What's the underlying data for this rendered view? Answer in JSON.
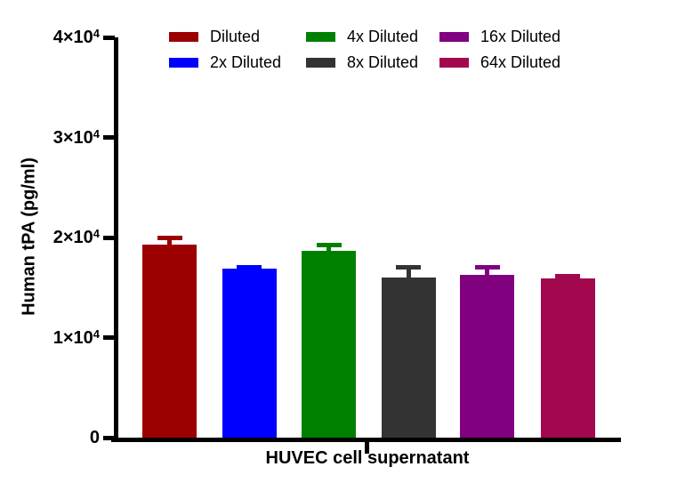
{
  "chart_data": {
    "type": "bar",
    "title": "",
    "xlabel": "HUVEC cell supernatant",
    "ylabel": "Human tPA (pg/ml)",
    "ylim": [
      0,
      40000
    ],
    "grid": false,
    "legend_position": "top-center",
    "background": "#FFFFFF",
    "axis_color": "#000000",
    "categories": [
      "HUVEC cell supernatant"
    ],
    "y_ticks": [
      {
        "value": 40000,
        "mantissa": "4×10",
        "exp": "4"
      },
      {
        "value": 30000,
        "mantissa": "3×10",
        "exp": "4"
      },
      {
        "value": 20000,
        "mantissa": "2×10",
        "exp": "4"
      },
      {
        "value": 10000,
        "mantissa": "1×10",
        "exp": "4"
      },
      {
        "value": 0,
        "mantissa": "0",
        "exp": ""
      }
    ],
    "series": [
      {
        "name": "Diluted",
        "color": "#9C0101",
        "value": 19300,
        "error_plus": 650
      },
      {
        "name": "2x Diluted",
        "color": "#0000FF",
        "value": 16850,
        "error_plus": 150
      },
      {
        "name": "4x Diluted",
        "color": "#008000",
        "value": 18650,
        "error_plus": 600
      },
      {
        "name": "8x Diluted",
        "color": "#333333",
        "value": 16000,
        "error_plus": 1000
      },
      {
        "name": "16x Diluted",
        "color": "#800080",
        "value": 16250,
        "error_plus": 750
      },
      {
        "name": "64x Diluted",
        "color": "#A2084E",
        "value": 15900,
        "error_plus": 250
      }
    ],
    "legend_columns": [
      [
        0,
        1
      ],
      [
        2,
        3
      ],
      [
        4,
        5
      ]
    ]
  }
}
